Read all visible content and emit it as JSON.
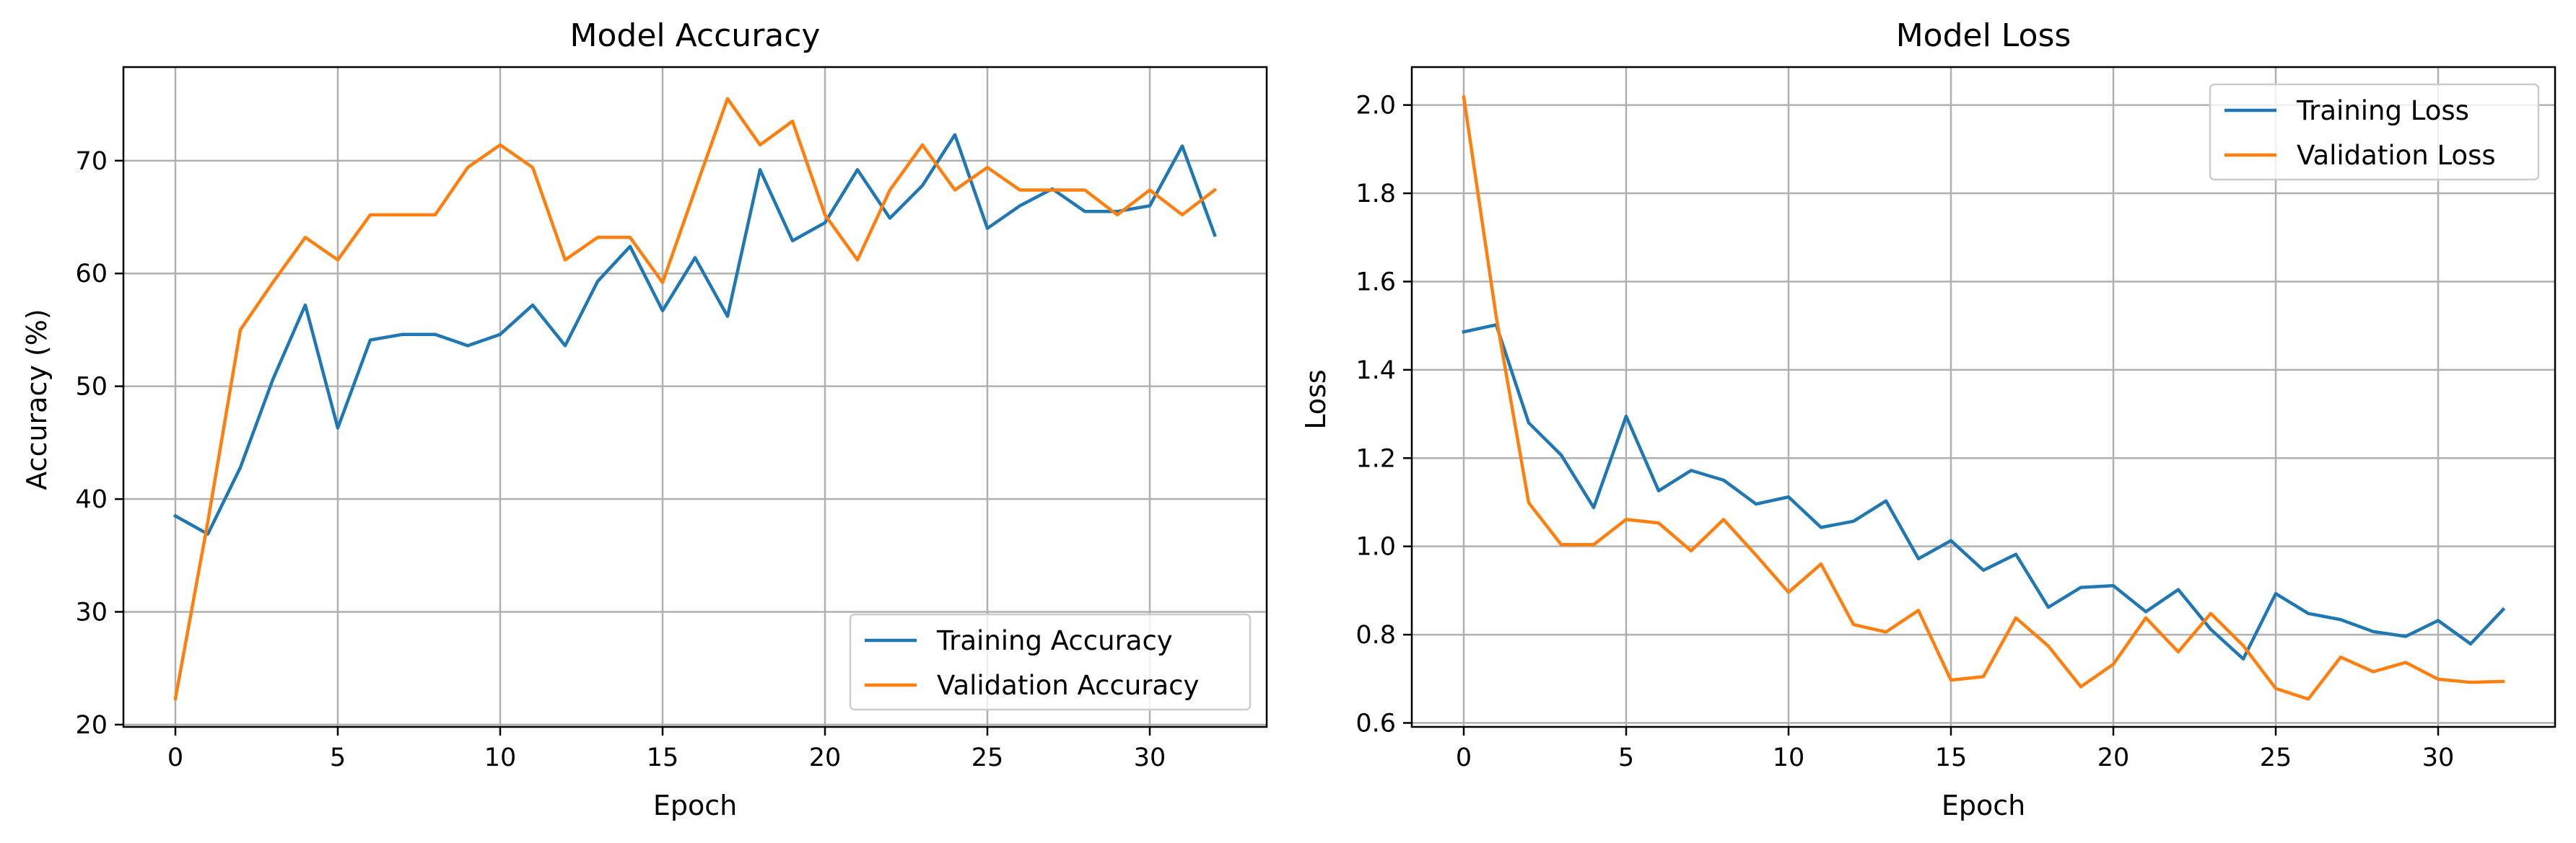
{
  "chart_data": [
    {
      "type": "line",
      "title": "Model Accuracy",
      "xlabel": "Epoch",
      "ylabel": "Accuracy (%)",
      "xlim": [
        -1.6,
        33.6
      ],
      "ylim": [
        19.8,
        78.3
      ],
      "xticks": [
        0,
        5,
        10,
        15,
        20,
        25,
        30
      ],
      "yticks": [
        20,
        30,
        40,
        50,
        60,
        70
      ],
      "grid": true,
      "legend_position": "lower-right",
      "x": [
        0,
        1,
        2,
        3,
        4,
        5,
        6,
        7,
        8,
        9,
        10,
        11,
        12,
        13,
        14,
        15,
        16,
        17,
        18,
        19,
        20,
        21,
        22,
        23,
        24,
        25,
        26,
        27,
        28,
        29,
        30,
        31,
        32
      ],
      "series": [
        {
          "name": "Training Accuracy",
          "color": "#1f77b4",
          "values": [
            38.5,
            36.9,
            42.8,
            50.6,
            57.2,
            46.3,
            54.1,
            54.6,
            54.6,
            53.6,
            54.6,
            57.2,
            53.6,
            59.3,
            62.4,
            56.7,
            61.4,
            56.2,
            69.2,
            62.9,
            64.5,
            69.2,
            64.9,
            67.8,
            72.3,
            64.0,
            66.0,
            67.5,
            65.5,
            65.5,
            66.0,
            71.3,
            63.4
          ]
        },
        {
          "name": "Validation Accuracy",
          "color": "#ff7f0e",
          "values": [
            22.3,
            38.0,
            55.0,
            59.2,
            63.2,
            61.2,
            65.2,
            65.2,
            65.2,
            69.4,
            71.4,
            69.4,
            61.2,
            63.2,
            63.2,
            59.2,
            67.4,
            75.5,
            71.4,
            73.5,
            65.2,
            61.2,
            67.4,
            71.4,
            67.4,
            69.4,
            67.4,
            67.4,
            67.4,
            65.2,
            67.4,
            65.2,
            67.4
          ]
        }
      ]
    },
    {
      "type": "line",
      "title": "Model Loss",
      "xlabel": "Epoch",
      "ylabel": "Loss",
      "xlim": [
        -1.6,
        33.6
      ],
      "ylim": [
        0.591,
        2.086
      ],
      "xticks": [
        0,
        5,
        10,
        15,
        20,
        25,
        30
      ],
      "yticks": [
        0.6,
        0.8,
        1.0,
        1.2,
        1.4,
        1.6,
        1.8,
        2.0
      ],
      "ytick_labels": [
        "0.6",
        "0.8",
        "1.0",
        "1.2",
        "1.4",
        "1.6",
        "1.8",
        "2.0"
      ],
      "grid": true,
      "legend_position": "upper-right",
      "x": [
        0,
        1,
        2,
        3,
        4,
        5,
        6,
        7,
        8,
        9,
        10,
        11,
        12,
        13,
        14,
        15,
        16,
        17,
        18,
        19,
        20,
        21,
        22,
        23,
        24,
        25,
        26,
        27,
        28,
        29,
        30,
        31,
        32
      ],
      "series": [
        {
          "name": "Training Loss",
          "color": "#1f77b4",
          "values": [
            1.486,
            1.502,
            1.28,
            1.207,
            1.088,
            1.295,
            1.126,
            1.172,
            1.15,
            1.096,
            1.112,
            1.043,
            1.057,
            1.103,
            0.972,
            1.013,
            0.946,
            0.982,
            0.862,
            0.907,
            0.911,
            0.852,
            0.902,
            0.812,
            0.745,
            0.893,
            0.848,
            0.834,
            0.807,
            0.796,
            0.832,
            0.779,
            0.857
          ]
        },
        {
          "name": "Validation Loss",
          "color": "#ff7f0e",
          "values": [
            2.018,
            1.52,
            1.099,
            1.004,
            1.004,
            1.061,
            1.053,
            0.99,
            1.061,
            0.98,
            0.896,
            0.96,
            0.823,
            0.806,
            0.855,
            0.697,
            0.705,
            0.838,
            0.774,
            0.682,
            0.733,
            0.838,
            0.761,
            0.848,
            0.775,
            0.678,
            0.654,
            0.749,
            0.716,
            0.737,
            0.699,
            0.692,
            0.694
          ]
        }
      ]
    }
  ]
}
